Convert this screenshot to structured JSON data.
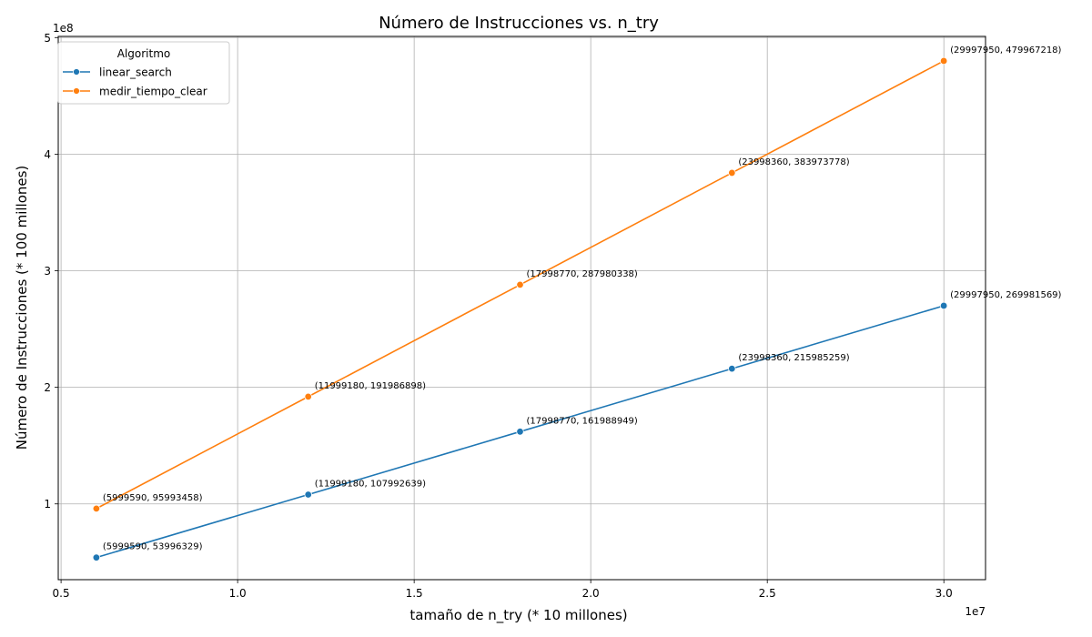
{
  "chart_data": {
    "type": "line",
    "title": "Número de Instrucciones vs. n_try",
    "xlabel": "tamaño de n_try (* 10 millones)",
    "ylabel": "Número de Instrucciones (* 100 millones)",
    "x_offset_label": "1e7",
    "y_offset_label": "1e8",
    "x_ticks": [
      {
        "value": 5000000,
        "label": "0.5"
      },
      {
        "value": 10000000,
        "label": "1.0"
      },
      {
        "value": 15000000,
        "label": "1.5"
      },
      {
        "value": 20000000,
        "label": "2.0"
      },
      {
        "value": 25000000,
        "label": "2.5"
      },
      {
        "value": 30000000,
        "label": "3.0"
      }
    ],
    "y_ticks": [
      {
        "value": 100000000,
        "label": "1"
      },
      {
        "value": 200000000,
        "label": "2"
      },
      {
        "value": 300000000,
        "label": "3"
      },
      {
        "value": 400000000,
        "label": "4"
      },
      {
        "value": 500000000,
        "label": "5"
      }
    ],
    "xlim": [
      4920000,
      31180000
    ],
    "ylim": [
      35000000,
      501000000
    ],
    "grid": true,
    "legend": {
      "title": "Algoritmo",
      "position": "top-left"
    },
    "series": [
      {
        "name": "linear_search",
        "color": "#1f77b4",
        "x": [
          5999590,
          11999180,
          17998770,
          23998360,
          29997950
        ],
        "y": [
          53996329,
          107992639,
          161988949,
          215985259,
          269981569
        ],
        "point_labels": [
          "(5999590, 53996329)",
          "(11999180, 107992639)",
          "(17998770, 161988949)",
          "(23998360, 215985259)",
          "(29997950, 269981569)"
        ]
      },
      {
        "name": "medir_tiempo_clear",
        "color": "#ff7f0e",
        "x": [
          5999590,
          11999180,
          17998770,
          23998360,
          29997950
        ],
        "y": [
          95993458,
          191986898,
          287980338,
          383973778,
          479967218
        ],
        "point_labels": [
          "(5999590, 95993458)",
          "(11999180, 191986898)",
          "(17998770, 287980338)",
          "(23998360, 383973778)",
          "(29997950, 479967218)"
        ]
      }
    ]
  }
}
